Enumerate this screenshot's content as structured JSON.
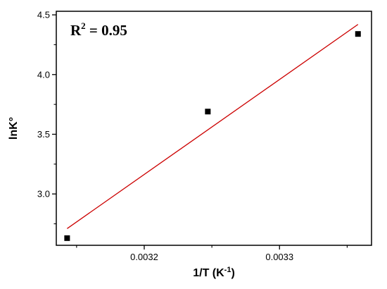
{
  "chart_data": {
    "type": "scatter",
    "xlabel_base": "1/T (K",
    "xlabel_sup": "-1",
    "xlabel_end": ")",
    "ylabel": "lnK°",
    "xlim": [
      0.003135,
      0.003368
    ],
    "ylim": [
      2.57,
      4.53
    ],
    "xticks": [
      {
        "value": 0.0032,
        "label": "0.0032"
      },
      {
        "value": 0.0033,
        "label": "0.0033"
      }
    ],
    "yticks": [
      {
        "value": 3.0,
        "label": "3.0"
      },
      {
        "value": 3.5,
        "label": "3.5"
      },
      {
        "value": 4.0,
        "label": "4.0"
      },
      {
        "value": 4.5,
        "label": "4.5"
      }
    ],
    "points": [
      {
        "x": 0.003143,
        "y": 2.63
      },
      {
        "x": 0.003247,
        "y": 3.69
      },
      {
        "x": 0.003358,
        "y": 4.34
      }
    ],
    "fit_line": {
      "x": [
        0.003143,
        0.003358
      ],
      "y": [
        2.71,
        4.42
      ],
      "color": "#cc0000"
    },
    "annotation": {
      "base": "R",
      "sup": "2",
      "rest": " = 0.95"
    },
    "marker_color": "#000000",
    "grid": false
  }
}
